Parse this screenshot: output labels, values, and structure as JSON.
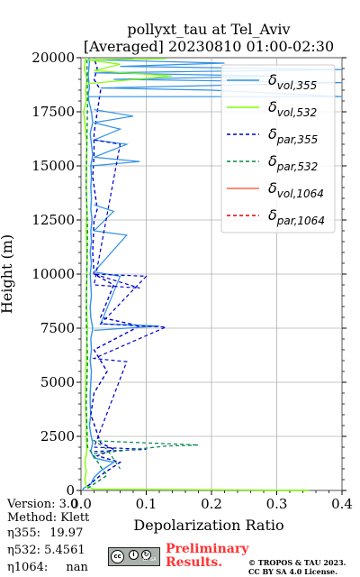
{
  "chart_data": {
    "type": "line",
    "title_line1": "pollyxt_tau at Tel_Aviv",
    "title_line2": "[Averaged] 20230810 01:00-02:30",
    "xlabel": "Depolarization Ratio",
    "ylabel": "Height (m)",
    "xlim": [
      0,
      0.4
    ],
    "ylim": [
      0,
      20000
    ],
    "x_ticks": [
      0,
      0.1,
      0.2,
      0.3,
      0.4
    ],
    "x_tick_labels": [
      "0.0",
      "0.1",
      "0.2",
      "0.3",
      "0.4"
    ],
    "y_ticks": [
      0,
      2500,
      5000,
      7500,
      10000,
      12500,
      15000,
      17500,
      20000
    ],
    "y_tick_labels": [
      "0",
      "2500",
      "5000",
      "7500",
      "10000",
      "12500",
      "15000",
      "17500",
      "20000"
    ],
    "grid": true,
    "legend_position": "top-right",
    "series": [
      {
        "name": "δvol,355",
        "label_main": "δ",
        "label_sub": "vol,355",
        "color": "#3392e6",
        "style": "solid",
        "points": [
          [
            0.002,
            0
          ],
          [
            0.004,
            100
          ],
          [
            0.015,
            300
          ],
          [
            0.02,
            600
          ],
          [
            0.03,
            900
          ],
          [
            0.05,
            1300
          ],
          [
            0.02,
            1500
          ],
          [
            0.015,
            1800
          ],
          [
            0.018,
            2200
          ],
          [
            0.015,
            2600
          ],
          [
            0.013,
            3000
          ],
          [
            0.015,
            3500
          ],
          [
            0.014,
            4000
          ],
          [
            0.014,
            4500
          ],
          [
            0.015,
            5000
          ],
          [
            0.016,
            5500
          ],
          [
            0.014,
            6000
          ],
          [
            0.016,
            6500
          ],
          [
            0.015,
            7000
          ],
          [
            0.018,
            7500
          ],
          [
            0.015,
            8000
          ],
          [
            0.014,
            8500
          ],
          [
            0.016,
            9000
          ],
          [
            0.015,
            9500
          ],
          [
            0.014,
            10000
          ],
          [
            0.016,
            10500
          ],
          [
            0.014,
            11000
          ],
          [
            0.016,
            11500
          ],
          [
            0.015,
            12000
          ],
          [
            0.017,
            12500
          ],
          [
            0.015,
            13000
          ],
          [
            0.016,
            13500
          ],
          [
            0.015,
            14000
          ],
          [
            0.016,
            14500
          ],
          [
            0.015,
            15000
          ],
          [
            0.018,
            15500
          ],
          [
            0.016,
            16000
          ],
          [
            0.014,
            16500
          ],
          [
            0.018,
            17000
          ],
          [
            0.016,
            17500
          ],
          [
            0.012,
            18000
          ],
          [
            0.011,
            18300
          ],
          [
            0.013,
            18600
          ],
          [
            0.012,
            18900
          ],
          [
            0.011,
            19200
          ],
          [
            0.012,
            19500
          ],
          [
            0.013,
            19800
          ],
          [
            0.012,
            20000
          ]
        ]
      },
      {
        "name": "δvol,532",
        "label_main": "δ",
        "label_sub": "vol,532",
        "color": "#80ff00",
        "style": "solid",
        "points": [
          [
            0.35,
            0
          ],
          [
            0.02,
            60
          ],
          [
            0.008,
            200
          ],
          [
            0.006,
            500
          ],
          [
            0.008,
            900
          ],
          [
            0.006,
            1300
          ],
          [
            0.009,
            1800
          ],
          [
            0.008,
            2500
          ],
          [
            0.008,
            3000
          ],
          [
            0.007,
            4000
          ],
          [
            0.007,
            5000
          ],
          [
            0.008,
            6000
          ],
          [
            0.009,
            7000
          ],
          [
            0.01,
            7500
          ],
          [
            0.009,
            8000
          ],
          [
            0.008,
            9000
          ],
          [
            0.009,
            10000
          ],
          [
            0.009,
            11000
          ],
          [
            0.008,
            12000
          ],
          [
            0.009,
            13000
          ],
          [
            0.008,
            14000
          ],
          [
            0.008,
            15000
          ],
          [
            0.009,
            16000
          ],
          [
            0.006,
            17000
          ],
          [
            0.004,
            17500
          ],
          [
            0.008,
            18000
          ],
          [
            0.007,
            18500
          ],
          [
            0.009,
            19000
          ],
          [
            0.005,
            19500
          ],
          [
            0.007,
            20000
          ]
        ]
      },
      {
        "name": "δpar,355",
        "label_main": "δ",
        "label_sub": "par,355",
        "color": "#0000cc",
        "style": "dashed",
        "points": [
          [
            0.01,
            200
          ],
          [
            0.03,
            700
          ],
          [
            0.06,
            1300
          ],
          [
            0.025,
            1600
          ],
          [
            0.05,
            1900
          ],
          [
            0.03,
            2200
          ],
          [
            0.015,
            3500
          ],
          [
            0.02,
            4500
          ],
          [
            0.04,
            5500
          ],
          [
            0.02,
            6500
          ],
          [
            0.09,
            7600
          ],
          [
            0.03,
            8000
          ],
          [
            0.05,
            9500
          ],
          [
            0.02,
            10000
          ],
          [
            0.018,
            11000
          ],
          [
            0.02,
            12500
          ],
          [
            0.025,
            13000
          ],
          [
            0.018,
            14500
          ],
          [
            0.02,
            15500
          ],
          [
            0.02,
            16500
          ],
          [
            0.025,
            17500
          ],
          [
            0.03,
            18500
          ],
          [
            0.02,
            19000
          ],
          [
            0.025,
            19500
          ],
          [
            0.02,
            20000
          ]
        ]
      },
      {
        "name": "δpar,532",
        "label_main": "δ",
        "label_sub": "par,532",
        "color": "#008844",
        "style": "dashed",
        "points": [
          [
            0.01,
            100
          ],
          [
            0.04,
            700
          ],
          [
            0.03,
            1100
          ],
          [
            0.02,
            1600
          ],
          [
            0.01,
            2000
          ],
          [
            0.008,
            4000
          ],
          [
            0.01,
            6000
          ],
          [
            0.008,
            8000
          ],
          [
            0.009,
            10000
          ],
          [
            0.01,
            12000
          ],
          [
            0.008,
            14000
          ],
          [
            0.009,
            16000
          ],
          [
            0.01,
            18000
          ],
          [
            0.009,
            20000
          ]
        ]
      },
      {
        "name": "δvol,1064",
        "label_main": "δ",
        "label_sub": "vol,1064",
        "color": "#ff6347",
        "style": "solid",
        "points": []
      },
      {
        "name": "δpar,1064",
        "label_main": "δ",
        "label_sub": "par,1064",
        "color": "#dd0000",
        "style": "dashed",
        "points": []
      }
    ],
    "spikes": [
      {
        "series": 0,
        "points": [
          [
            0.012,
            18200
          ],
          [
            0.2,
            18200
          ],
          [
            0.4,
            18200
          ],
          [
            0.2,
            18500
          ],
          [
            0.03,
            18600
          ],
          [
            0.4,
            18850
          ],
          [
            0.05,
            19000
          ],
          [
            0.3,
            19150
          ],
          [
            0.02,
            19300
          ],
          [
            0.4,
            19450
          ],
          [
            0.06,
            19600
          ],
          [
            0.22,
            19750
          ],
          [
            0.02,
            19900
          ],
          [
            0.08,
            19950
          ]
        ]
      },
      {
        "series": 0,
        "points": [
          [
            0.015,
            15000
          ],
          [
            0.09,
            15200
          ],
          [
            0.02,
            15400
          ],
          [
            0.07,
            16000
          ],
          [
            0.02,
            16200
          ],
          [
            0.06,
            16700
          ],
          [
            0.02,
            17000
          ],
          [
            0.08,
            17300
          ],
          [
            0.02,
            17600
          ]
        ]
      },
      {
        "series": 0,
        "points": [
          [
            0.02,
            7400
          ],
          [
            0.12,
            7600
          ],
          [
            0.03,
            7700
          ],
          [
            0.06,
            9900
          ],
          [
            0.02,
            10100
          ],
          [
            0.07,
            11800
          ],
          [
            0.02,
            12000
          ],
          [
            0.05,
            12900
          ],
          [
            0.02,
            13200
          ]
        ]
      },
      {
        "series": 1,
        "points": [
          [
            0.01,
            18800
          ],
          [
            0.14,
            19150
          ],
          [
            0.02,
            19400
          ],
          [
            0.06,
            19700
          ],
          [
            0.01,
            19900
          ],
          [
            0.13,
            19950
          ]
        ]
      },
      {
        "series": 2,
        "points": [
          [
            0.02,
            1800
          ],
          [
            0.1,
            1900
          ],
          [
            0.02,
            2000
          ],
          [
            0.07,
            5950
          ],
          [
            0.02,
            6100
          ],
          [
            0.13,
            7550
          ],
          [
            0.03,
            7700
          ],
          [
            0.1,
            9900
          ],
          [
            0.02,
            10000
          ],
          [
            0.09,
            9350
          ],
          [
            0.02,
            9500
          ],
          [
            0.06,
            16000
          ],
          [
            0.02,
            16200
          ]
        ]
      },
      {
        "series": 3,
        "points": [
          [
            0.02,
            1700
          ],
          [
            0.13,
            2050
          ],
          [
            0.18,
            2100
          ],
          [
            0.02,
            2300
          ],
          [
            0.04,
            1900
          ],
          [
            0.06,
            1000
          ]
        ]
      }
    ]
  },
  "info": {
    "version": "Version: 3.0",
    "method": "Method: Klett",
    "eta355_label": "η355:",
    "eta355_value": "19.97",
    "eta532_label": "η532:",
    "eta532_value": "5.4561",
    "eta1064_label": "η1064:",
    "eta1064_value": "nan"
  },
  "footer": {
    "prelim_line1": "Preliminary",
    "prelim_line2": "Results.",
    "copyright_line1": "© TROPOS & TAU 2023.",
    "copyright_line2": "CC BY SA 4.0 License.",
    "license_text": "BY SA"
  }
}
